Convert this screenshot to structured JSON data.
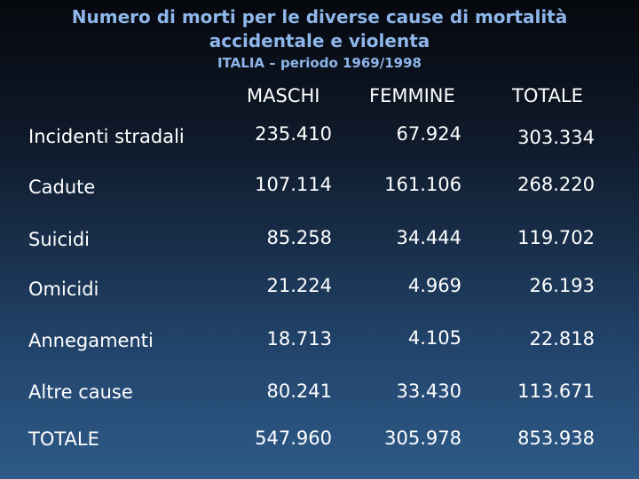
{
  "title_line1": "Numero di morti per le diverse cause di mortalità",
  "title_line2": "accidentale e violenta",
  "subtitle": "ITALIA – periodo 1969/1998",
  "columns": [
    "MASCHI",
    "FEMMINE",
    "TOTALE"
  ],
  "rows": [
    {
      "label": "Incidenti stradali",
      "maschi": "235.410",
      "femmine": "67.924",
      "totale": "303.334"
    },
    {
      "label": "Cadute",
      "maschi": "107.114",
      "femmine": "161.106",
      "totale": "268.220"
    },
    {
      "label": "Suicidi",
      "maschi": "85.258",
      "femmine": "34.444",
      "totale": "119.702"
    },
    {
      "label": "Omicidi",
      "maschi": "21.224",
      "femmine": "4.969",
      "totale": "26.193"
    },
    {
      "label": "Annegamenti",
      "maschi": "18.713",
      "femmine": "4.105",
      "totale": "22.818"
    },
    {
      "label": "Altre cause",
      "maschi": "80.241",
      "femmine": "33.430",
      "totale": "113.671"
    },
    {
      "label": "TOTALE",
      "maschi": "547.960",
      "femmine": "305.978",
      "totale": "853.938"
    }
  ]
}
